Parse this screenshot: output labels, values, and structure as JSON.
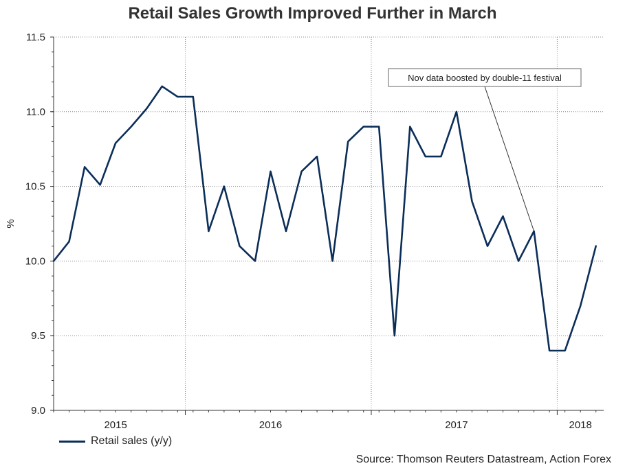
{
  "chart_data": {
    "type": "line",
    "title": "Retail Sales Growth Improved Further in March",
    "ylabel": "%",
    "xlabel": "",
    "ylim": [
      9.0,
      11.5
    ],
    "yticks": [
      "9.0",
      "9.5",
      "10.0",
      "10.5",
      "11.0",
      "11.5"
    ],
    "ytick_values": [
      9.0,
      9.5,
      10.0,
      10.5,
      11.0,
      11.5
    ],
    "xlim": [
      0,
      35.5
    ],
    "xtick_labels": [
      {
        "label": "2015",
        "x": 4
      },
      {
        "label": "2016",
        "x": 14
      },
      {
        "label": "2017",
        "x": 26
      },
      {
        "label": "2018",
        "x": 34
      }
    ],
    "xgrid_at": [
      8.5,
      20.5,
      32.5
    ],
    "grid": true,
    "series": [
      {
        "name": "Retail sales (y/y)",
        "color": "#0b2e59",
        "x": [
          0,
          1,
          2,
          3,
          4,
          5,
          6,
          7,
          8,
          9,
          10,
          11,
          12,
          13,
          14,
          15,
          16,
          17,
          18,
          19,
          20,
          21,
          22,
          23,
          24,
          25,
          26,
          27,
          28,
          29,
          30,
          31,
          32,
          33,
          34,
          35
        ],
        "values": [
          10.0,
          10.13,
          10.63,
          10.51,
          10.79,
          10.9,
          11.02,
          11.17,
          11.1,
          11.1,
          10.2,
          10.5,
          10.1,
          10.0,
          10.6,
          10.2,
          10.6,
          10.7,
          10.0,
          10.8,
          10.9,
          10.9,
          9.5,
          10.9,
          10.7,
          10.7,
          11.0,
          10.4,
          10.1,
          10.3,
          10.0,
          10.2,
          9.4,
          9.4,
          9.7,
          10.1
        ]
      }
    ],
    "annotation": {
      "text": "Nov data boosted by double-11 festival",
      "point_x": 31,
      "point_y": 10.2
    },
    "legend": "bottom-left"
  },
  "legend_label": "Retail sales (y/y)",
  "source": "Source: Thomson Reuters Datastream, Action Forex"
}
